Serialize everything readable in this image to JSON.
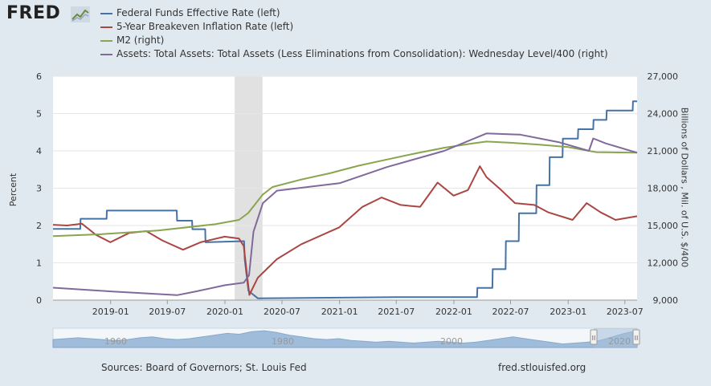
{
  "brand": {
    "logo_text": "FRED"
  },
  "colors": {
    "fedfunds": "#4572a7",
    "breakeven": "#aa4643",
    "m2": "#89a54e",
    "assets": "#80699b",
    "recession": "#e1e1e1",
    "background": "#e1e9f0",
    "plot_bg": "#ffffff",
    "navigator_fill": "#8aaed3"
  },
  "footer": {
    "source": "Sources: Board of Governors; St. Louis Fed",
    "url": "fred.stlouisfed.org"
  },
  "chart_data": {
    "type": "line",
    "legend_position": "top",
    "grid": true,
    "series": [
      {
        "name": "Federal Funds Effective Rate (left)",
        "axis": "left",
        "color_key": "fedfunds",
        "points": [
          [
            "2018-07-01",
            1.91
          ],
          [
            "2018-09-26",
            1.91
          ],
          [
            "2018-09-27",
            2.18
          ],
          [
            "2018-12-19",
            2.18
          ],
          [
            "2018-12-20",
            2.4
          ],
          [
            "2019-07-31",
            2.4
          ],
          [
            "2019-08-01",
            2.13
          ],
          [
            "2019-09-18",
            2.13
          ],
          [
            "2019-09-19",
            1.9
          ],
          [
            "2019-10-30",
            1.9
          ],
          [
            "2019-10-31",
            1.55
          ],
          [
            "2020-03-02",
            1.58
          ],
          [
            "2020-03-04",
            1.1
          ],
          [
            "2020-03-16",
            0.25
          ],
          [
            "2020-04-15",
            0.05
          ],
          [
            "2021-07-01",
            0.08
          ],
          [
            "2022-03-16",
            0.08
          ],
          [
            "2022-03-17",
            0.33
          ],
          [
            "2022-05-04",
            0.33
          ],
          [
            "2022-05-05",
            0.83
          ],
          [
            "2022-06-15",
            0.83
          ],
          [
            "2022-06-16",
            1.58
          ],
          [
            "2022-07-27",
            1.58
          ],
          [
            "2022-07-28",
            2.33
          ],
          [
            "2022-09-21",
            2.33
          ],
          [
            "2022-09-22",
            3.08
          ],
          [
            "2022-11-02",
            3.08
          ],
          [
            "2022-11-03",
            3.83
          ],
          [
            "2022-12-14",
            3.83
          ],
          [
            "2022-12-15",
            4.33
          ],
          [
            "2023-02-01",
            4.33
          ],
          [
            "2023-02-02",
            4.58
          ],
          [
            "2023-03-22",
            4.58
          ],
          [
            "2023-03-23",
            4.83
          ],
          [
            "2023-05-03",
            4.83
          ],
          [
            "2023-05-04",
            5.08
          ],
          [
            "2023-07-26",
            5.08
          ],
          [
            "2023-07-27",
            5.33
          ],
          [
            "2023-08-09",
            5.33
          ]
        ]
      },
      {
        "name": "5-Year Breakeven Inflation Rate (left)",
        "axis": "left",
        "color_key": "breakeven",
        "points": [
          [
            "2018-07-01",
            2.02
          ],
          [
            "2018-08-15",
            2.0
          ],
          [
            "2018-10-01",
            2.05
          ],
          [
            "2018-11-15",
            1.75
          ],
          [
            "2018-12-31",
            1.55
          ],
          [
            "2019-03-01",
            1.8
          ],
          [
            "2019-04-25",
            1.85
          ],
          [
            "2019-06-15",
            1.6
          ],
          [
            "2019-08-20",
            1.35
          ],
          [
            "2019-10-15",
            1.55
          ],
          [
            "2019-12-31",
            1.7
          ],
          [
            "2020-02-15",
            1.65
          ],
          [
            "2020-03-01",
            1.45
          ],
          [
            "2020-03-19",
            0.14
          ],
          [
            "2020-04-15",
            0.6
          ],
          [
            "2020-06-15",
            1.1
          ],
          [
            "2020-09-01",
            1.5
          ],
          [
            "2020-12-31",
            1.95
          ],
          [
            "2021-03-15",
            2.5
          ],
          [
            "2021-05-15",
            2.75
          ],
          [
            "2021-07-15",
            2.55
          ],
          [
            "2021-09-15",
            2.5
          ],
          [
            "2021-11-10",
            3.15
          ],
          [
            "2021-12-31",
            2.8
          ],
          [
            "2022-02-15",
            2.95
          ],
          [
            "2022-03-25",
            3.59
          ],
          [
            "2022-04-15",
            3.3
          ],
          [
            "2022-06-01",
            2.95
          ],
          [
            "2022-07-15",
            2.6
          ],
          [
            "2022-09-15",
            2.55
          ],
          [
            "2022-10-30",
            2.35
          ],
          [
            "2023-01-15",
            2.15
          ],
          [
            "2023-03-01",
            2.6
          ],
          [
            "2023-04-15",
            2.35
          ],
          [
            "2023-06-01",
            2.15
          ],
          [
            "2023-08-09",
            2.25
          ]
        ]
      },
      {
        "name": "M2 (right)",
        "axis": "right",
        "color_key": "m2",
        "points": [
          [
            "2018-07-01",
            14150
          ],
          [
            "2018-12-01",
            14300
          ],
          [
            "2019-06-01",
            14600
          ],
          [
            "2019-12-01",
            15100
          ],
          [
            "2020-02-15",
            15450
          ],
          [
            "2020-03-15",
            16000
          ],
          [
            "2020-05-01",
            17500
          ],
          [
            "2020-06-01",
            18100
          ],
          [
            "2020-09-01",
            18700
          ],
          [
            "2020-12-01",
            19200
          ],
          [
            "2021-03-01",
            19800
          ],
          [
            "2021-06-01",
            20300
          ],
          [
            "2021-09-01",
            20800
          ],
          [
            "2021-12-01",
            21250
          ],
          [
            "2022-03-01",
            21600
          ],
          [
            "2022-04-15",
            21750
          ],
          [
            "2022-07-01",
            21650
          ],
          [
            "2022-10-01",
            21500
          ],
          [
            "2023-01-01",
            21300
          ],
          [
            "2023-04-01",
            20900
          ],
          [
            "2023-08-09",
            20850
          ]
        ]
      },
      {
        "name": "Assets: Total Assets: Total Assets (Less Eliminations from Consolidation): Wednesday Level/400 (right)",
        "axis": "right",
        "color_key": "assets",
        "points": [
          [
            "2018-07-01",
            10000
          ],
          [
            "2019-01-01",
            9700
          ],
          [
            "2019-08-01",
            9400
          ],
          [
            "2019-10-01",
            9700
          ],
          [
            "2020-01-01",
            10200
          ],
          [
            "2020-03-01",
            10400
          ],
          [
            "2020-03-18",
            11000
          ],
          [
            "2020-04-01",
            14500
          ],
          [
            "2020-05-01",
            16800
          ],
          [
            "2020-06-15",
            17800
          ],
          [
            "2021-01-01",
            18400
          ],
          [
            "2021-06-01",
            19700
          ],
          [
            "2021-12-01",
            21000
          ],
          [
            "2022-04-15",
            22400
          ],
          [
            "2022-08-01",
            22300
          ],
          [
            "2022-12-01",
            21700
          ],
          [
            "2023-03-08",
            21000
          ],
          [
            "2023-03-22",
            22000
          ],
          [
            "2023-05-01",
            21600
          ],
          [
            "2023-08-09",
            20850
          ]
        ]
      }
    ],
    "x_range": [
      "2018-07-01",
      "2023-08-09"
    ],
    "x_ticks": [
      "2019-01",
      "2019-07",
      "2020-01",
      "2020-07",
      "2021-01",
      "2021-07",
      "2022-01",
      "2022-07",
      "2023-01",
      "2023-07"
    ],
    "y_left": {
      "label": "Percent",
      "ylim": [
        0,
        6
      ],
      "ticks": [
        "0",
        "1",
        "2",
        "3",
        "4",
        "5",
        "6"
      ]
    },
    "y_right": {
      "label": "Billions of Dollars , Mil. of U.S. $/400",
      "ylim": [
        9000,
        27000
      ],
      "ticks": [
        "9,000",
        "12,000",
        "15,000",
        "18,000",
        "21,000",
        "24,000",
        "27,000"
      ]
    },
    "recession": [
      [
        "2020-02-01",
        "2020-04-30"
      ]
    ],
    "navigator": {
      "labels": [
        "1960",
        "1980",
        "2000",
        "2020"
      ],
      "handle_labels": [
        "II",
        "II"
      ]
    }
  }
}
